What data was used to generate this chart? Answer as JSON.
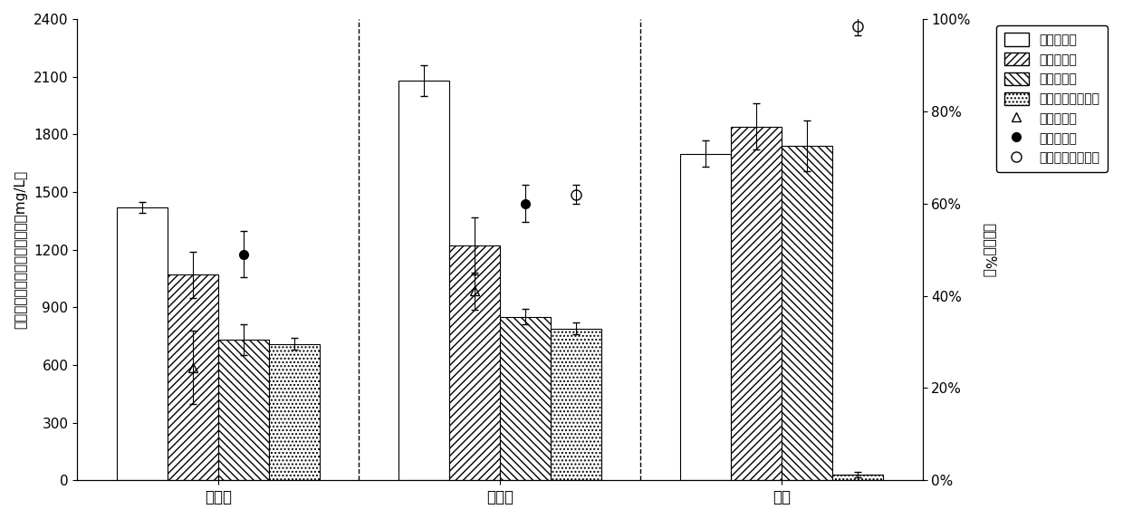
{
  "groups": [
    "蛋白质",
    "腐殖酸",
    "氨氮"
  ],
  "bar_labels": [
    "发酵后浓度",
    "混凝后浓度",
    "酸析后浓度",
    "鸟粪石沉淀后浓度"
  ],
  "bar_values": [
    [
      1420,
      1070,
      730,
      710
    ],
    [
      2080,
      1220,
      850,
      790
    ],
    [
      1700,
      1840,
      1740,
      30
    ]
  ],
  "bar_errors": [
    [
      30,
      120,
      80,
      30
    ],
    [
      80,
      150,
      40,
      30
    ],
    [
      70,
      120,
      130,
      15
    ]
  ],
  "marker_values": [
    [
      0.245,
      0.49,
      null
    ],
    [
      0.41,
      0.6,
      0.62
    ],
    [
      null,
      null,
      0.985
    ]
  ],
  "marker_errors": [
    [
      0.08,
      0.05,
      null
    ],
    [
      0.04,
      0.04,
      0.02
    ],
    [
      null,
      null,
      0.02
    ]
  ],
  "ylim_left": [
    0,
    2400
  ],
  "ylim_right": [
    0,
    1.0
  ],
  "yticks_left": [
    0,
    300,
    600,
    900,
    1200,
    1500,
    1800,
    2100,
    2400
  ],
  "yticks_right": [
    0.0,
    0.2,
    0.4,
    0.6,
    0.8,
    1.0
  ],
  "ytick_labels_right": [
    "0%",
    "20%",
    "40%",
    "60%",
    "80%",
    "100%"
  ],
  "ylabel_left": "溶解性有机物浓度和氨氮浓度（mg/L）",
  "ylabel_right": "去除率（%）",
  "bar_width": 0.18,
  "group_centers": [
    0.0,
    1.0,
    2.0
  ],
  "background_color": "#ffffff",
  "dpi": 100,
  "figsize": [
    12.4,
    5.73
  ]
}
